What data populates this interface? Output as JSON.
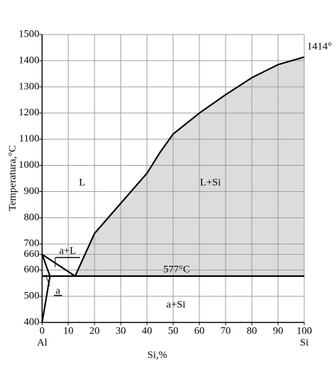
{
  "chart_data": {
    "type": "line",
    "x_label": "Si,%",
    "y_label": "Temperatura,°C",
    "x_end_labels": [
      "Al",
      "Si"
    ],
    "xlim": [
      0,
      100
    ],
    "ylim": [
      400,
      1500
    ],
    "xticks": [
      0,
      10,
      20,
      30,
      40,
      50,
      60,
      70,
      80,
      90,
      100
    ],
    "yticks": [
      400,
      500,
      600,
      660,
      700,
      800,
      900,
      1000,
      1100,
      1200,
      1300,
      1400,
      1500
    ],
    "grid": true,
    "series": [
      {
        "color": "#000000",
        "x": [
          0,
          12.6
        ],
        "values": [
          660,
          577
        ]
      },
      {
        "color": "#000000",
        "fill": "#dcdcdc",
        "x": [
          12.6,
          20,
          30,
          40,
          45,
          50,
          60,
          70,
          80,
          90,
          100
        ],
        "values": [
          577,
          740,
          855,
          970,
          1050,
          1120,
          1200,
          1270,
          1335,
          1385,
          1414
        ]
      },
      {
        "color": "#000000",
        "x": [
          0,
          100
        ],
        "values": [
          577,
          577
        ]
      },
      {
        "color": "#000000",
        "x": [
          0,
          3
        ],
        "values": [
          660,
          577
        ]
      },
      {
        "color": "#000000",
        "x": [
          0,
          3
        ],
        "values": [
          400,
          577
        ]
      }
    ],
    "annotations": [
      "1414°",
      "L",
      "L+Si",
      "a+L",
      "577°C",
      "a",
      "a+Si"
    ]
  }
}
